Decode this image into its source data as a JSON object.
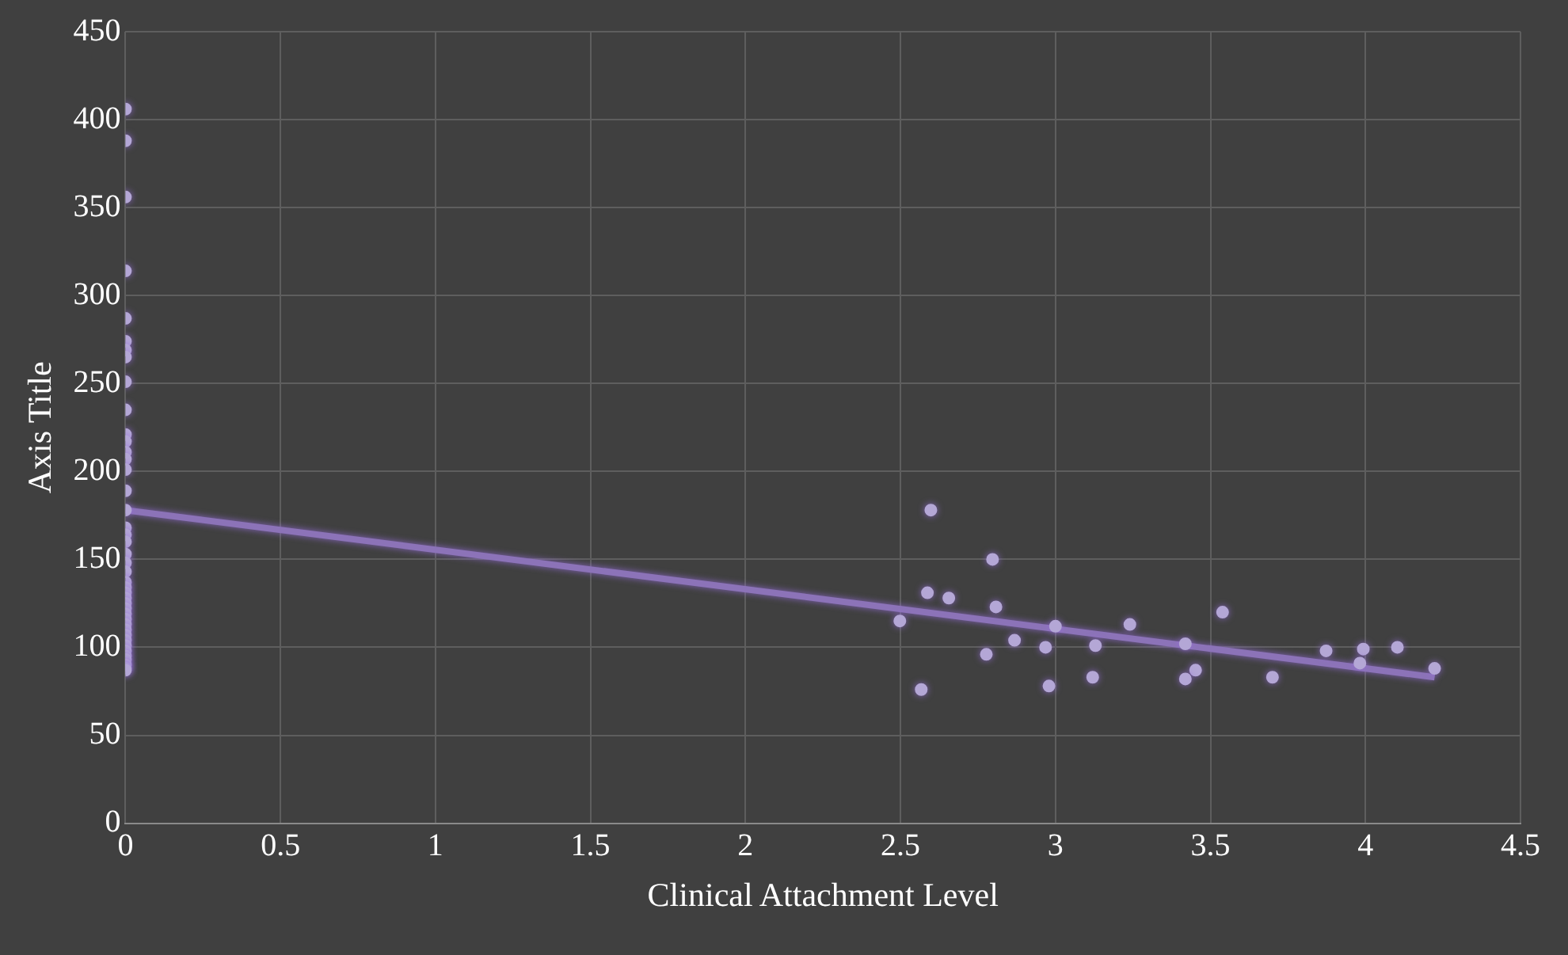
{
  "chart_data": {
    "type": "scatter",
    "xlabel": "Clinical Attachment Level",
    "ylabel": "Axis Title",
    "xlim": [
      0,
      4.5
    ],
    "xticks": [
      0,
      0.5,
      1,
      1.5,
      2,
      2.5,
      3,
      3.5,
      4,
      4.5
    ],
    "ylim": [
      0,
      450
    ],
    "yticks": [
      0,
      50,
      100,
      150,
      200,
      250,
      300,
      350,
      400,
      450
    ],
    "grid": true,
    "legend": false,
    "marker": "circle",
    "series": [
      {
        "color": "#b4a7d6",
        "x": [
          0,
          0,
          0,
          0,
          0,
          0,
          0,
          0,
          0,
          0,
          0,
          0,
          0,
          0,
          0,
          0,
          0,
          0,
          0,
          0,
          0,
          0,
          0,
          0,
          0,
          0,
          0,
          0,
          0,
          0,
          0,
          0,
          0,
          0,
          0,
          0,
          0,
          0,
          0,
          0,
          0,
          0,
          2.598,
          2.797,
          2.587,
          2.656,
          2.808,
          2.498,
          3.0,
          3.24,
          3.539,
          2.868,
          2.968,
          3.129,
          3.419,
          2.777,
          3.873,
          3.993,
          4.103,
          3.982,
          3.452,
          3.419,
          3.7,
          3.12,
          4.223,
          2.567,
          2.979
        ],
        "values": [
          406,
          388,
          356,
          314,
          287,
          274,
          269,
          265,
          251,
          235,
          221,
          217,
          211,
          207,
          201,
          189,
          178,
          168,
          164,
          160,
          153,
          148,
          143,
          137,
          134,
          131,
          128,
          125,
          122,
          119,
          116,
          113,
          110,
          107,
          104,
          101,
          98,
          95,
          93,
          90,
          88,
          87,
          178,
          150,
          131,
          128,
          123,
          115,
          112,
          113,
          120,
          104,
          100,
          101,
          102,
          96,
          98,
          99,
          100,
          91,
          87,
          82,
          83,
          83,
          88,
          76,
          78
        ]
      },
      {
        "type": "line",
        "marker": "none",
        "color": "#8c73b8",
        "x": [
          0,
          4.223
        ],
        "values": [
          178,
          83
        ]
      }
    ]
  }
}
